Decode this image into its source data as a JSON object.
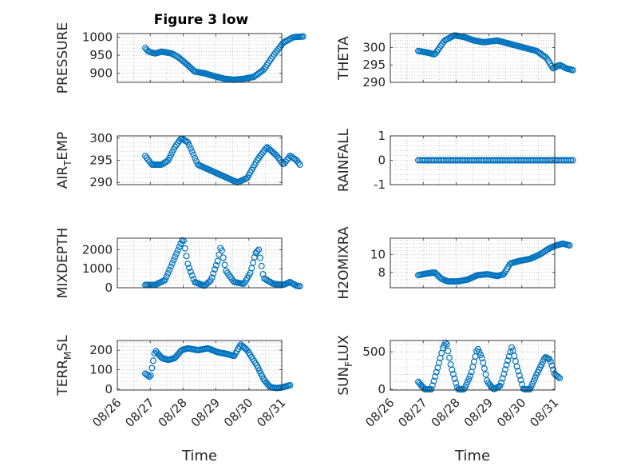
{
  "figure_title": "Figure 3 low",
  "colors": {
    "marker": "#0072BD",
    "axes": "#262626",
    "grid": "#b0b0b0",
    "background": "#ffffff"
  },
  "chart_data": [
    {
      "id": "pressure",
      "type": "scatter",
      "ylabel": "PRESSURE",
      "ylim": [
        875,
        1010
      ],
      "yticks": [
        900,
        950,
        1000
      ],
      "ytick_labels": [
        "900",
        "950",
        "1000"
      ],
      "xlim": [
        "08/26",
        "08/31"
      ],
      "xticks": [
        "08/26",
        "08/27",
        "08/28",
        "08/29",
        "08/30",
        "08/31"
      ],
      "show_xtick_labels": false,
      "xlabel": "",
      "grid": true,
      "curve": [
        [
          0.0,
          970
        ],
        [
          0.1,
          960
        ],
        [
          0.3,
          955
        ],
        [
          0.5,
          960
        ],
        [
          0.8,
          955
        ],
        [
          1.0,
          945
        ],
        [
          1.2,
          930
        ],
        [
          1.5,
          905
        ],
        [
          1.8,
          900
        ],
        [
          2.1,
          892
        ],
        [
          2.4,
          885
        ],
        [
          2.7,
          882
        ],
        [
          3.0,
          885
        ],
        [
          3.3,
          890
        ],
        [
          3.6,
          910
        ],
        [
          3.9,
          950
        ],
        [
          4.2,
          985
        ],
        [
          4.5,
          1000
        ],
        [
          4.8,
          1002
        ]
      ]
    },
    {
      "id": "theta",
      "type": "scatter",
      "ylabel": "THETA",
      "ylim": [
        290,
        304
      ],
      "yticks": [
        290,
        295,
        300
      ],
      "ytick_labels": [
        "290",
        "295",
        "300"
      ],
      "xlim": [
        "08/26",
        "08/31"
      ],
      "xticks": [
        "08/26",
        "08/27",
        "08/28",
        "08/29",
        "08/30",
        "08/31"
      ],
      "show_xtick_labels": false,
      "xlabel": "",
      "grid": true,
      "curve": [
        [
          0.0,
          299
        ],
        [
          0.3,
          298.5
        ],
        [
          0.5,
          298
        ],
        [
          0.8,
          302
        ],
        [
          1.1,
          303.5
        ],
        [
          1.4,
          303
        ],
        [
          1.7,
          302
        ],
        [
          2.0,
          301.5
        ],
        [
          2.4,
          302
        ],
        [
          2.8,
          301
        ],
        [
          3.2,
          300
        ],
        [
          3.6,
          299
        ],
        [
          3.9,
          297
        ],
        [
          4.1,
          294
        ],
        [
          4.3,
          295
        ],
        [
          4.5,
          294
        ],
        [
          4.7,
          293.5
        ]
      ]
    },
    {
      "id": "air_temp",
      "type": "scatter",
      "ylabel": "AIR",
      "ylabel_sub": "T",
      "ylabel_tail": "EMP",
      "ylim": [
        289.5,
        300.5
      ],
      "yticks": [
        290,
        295,
        300
      ],
      "ytick_labels": [
        "290",
        "295",
        "300"
      ],
      "xlim": [
        "08/26",
        "08/31"
      ],
      "xticks": [
        "08/26",
        "08/27",
        "08/28",
        "08/29",
        "08/30",
        "08/31"
      ],
      "show_xtick_labels": false,
      "xlabel": "",
      "grid": true,
      "curve": [
        [
          0.0,
          296
        ],
        [
          0.2,
          294
        ],
        [
          0.5,
          294
        ],
        [
          0.7,
          295
        ],
        [
          0.9,
          298
        ],
        [
          1.1,
          300
        ],
        [
          1.3,
          299
        ],
        [
          1.6,
          294
        ],
        [
          1.9,
          293
        ],
        [
          2.2,
          292
        ],
        [
          2.5,
          291
        ],
        [
          2.8,
          290
        ],
        [
          3.1,
          291
        ],
        [
          3.4,
          295
        ],
        [
          3.7,
          298
        ],
        [
          4.0,
          296
        ],
        [
          4.2,
          294
        ],
        [
          4.4,
          296
        ],
        [
          4.6,
          295
        ],
        [
          4.7,
          294
        ]
      ]
    },
    {
      "id": "rainfall",
      "type": "scatter",
      "ylabel": "RAINFALL",
      "ylim": [
        -1,
        1
      ],
      "yticks": [
        -1,
        0,
        1
      ],
      "ytick_labels": [
        "-1",
        "0",
        "1"
      ],
      "xlim": [
        "08/26",
        "08/31"
      ],
      "xticks": [
        "08/26",
        "08/27",
        "08/28",
        "08/29",
        "08/30",
        "08/31"
      ],
      "show_xtick_labels": false,
      "xlabel": "",
      "grid": true,
      "curve": [
        [
          0.0,
          0
        ],
        [
          4.7,
          0
        ]
      ]
    },
    {
      "id": "mixdepth",
      "type": "scatter",
      "ylabel": "MIXDEPTH",
      "ylim": [
        0,
        2600
      ],
      "yticks": [
        0,
        1000,
        2000
      ],
      "ytick_labels": [
        "0",
        "1000",
        "2000"
      ],
      "xlim": [
        "08/26",
        "08/31"
      ],
      "xticks": [
        "08/26",
        "08/27",
        "08/28",
        "08/29",
        "08/30",
        "08/31"
      ],
      "show_xtick_labels": false,
      "xlabel": "",
      "grid": true,
      "curve": [
        [
          0.0,
          150
        ],
        [
          0.3,
          150
        ],
        [
          0.6,
          400
        ],
        [
          0.8,
          1200
        ],
        [
          1.0,
          2000
        ],
        [
          1.15,
          2600
        ],
        [
          1.3,
          1200
        ],
        [
          1.5,
          300
        ],
        [
          1.8,
          100
        ],
        [
          2.0,
          400
        ],
        [
          2.2,
          1400
        ],
        [
          2.3,
          2200
        ],
        [
          2.45,
          900
        ],
        [
          2.7,
          300
        ],
        [
          3.0,
          200
        ],
        [
          3.2,
          800
        ],
        [
          3.35,
          1800
        ],
        [
          3.45,
          2000
        ],
        [
          3.6,
          500
        ],
        [
          3.9,
          200
        ],
        [
          4.2,
          150
        ],
        [
          4.4,
          300
        ],
        [
          4.6,
          100
        ],
        [
          4.7,
          80
        ]
      ]
    },
    {
      "id": "h2omixra",
      "type": "scatter",
      "ylabel": "H2OMIXRA",
      "ylim": [
        6.3,
        11.8
      ],
      "yticks": [
        8,
        10
      ],
      "ytick_labels": [
        "8",
        "10"
      ],
      "xlim": [
        "08/26",
        "08/31"
      ],
      "xticks": [
        "08/26",
        "08/27",
        "08/28",
        "08/29",
        "08/30",
        "08/31"
      ],
      "show_xtick_labels": false,
      "xlabel": "",
      "grid": true,
      "curve": [
        [
          0.0,
          7.7
        ],
        [
          0.3,
          7.9
        ],
        [
          0.5,
          8.0
        ],
        [
          0.7,
          7.3
        ],
        [
          0.9,
          7.0
        ],
        [
          1.2,
          7.0
        ],
        [
          1.5,
          7.2
        ],
        [
          1.8,
          7.7
        ],
        [
          2.1,
          7.8
        ],
        [
          2.4,
          7.6
        ],
        [
          2.6,
          7.8
        ],
        [
          2.8,
          9.0
        ],
        [
          3.1,
          9.3
        ],
        [
          3.4,
          9.5
        ],
        [
          3.7,
          10.0
        ],
        [
          4.0,
          10.7
        ],
        [
          4.2,
          11.0
        ],
        [
          4.4,
          11.2
        ],
        [
          4.6,
          11.0
        ]
      ]
    },
    {
      "id": "terr_msl",
      "type": "scatter",
      "ylabel": "TERR",
      "ylabel_sub": "M",
      "ylabel_tail": "SL",
      "ylim": [
        -5,
        250
      ],
      "yticks": [
        0,
        100,
        200
      ],
      "ytick_labels": [
        "0",
        "100",
        "200"
      ],
      "xlim": [
        "08/26",
        "08/31"
      ],
      "xticks": [
        "08/26",
        "08/27",
        "08/28",
        "08/29",
        "08/30",
        "08/31"
      ],
      "xtick_labels": [
        "08/26",
        "08/27",
        "08/28",
        "08/29",
        "08/30",
        "08/31"
      ],
      "show_xtick_labels": true,
      "xlabel": "Time",
      "grid": true,
      "curve": [
        [
          0.0,
          80
        ],
        [
          0.15,
          60
        ],
        [
          0.3,
          200
        ],
        [
          0.5,
          160
        ],
        [
          0.7,
          150
        ],
        [
          0.9,
          160
        ],
        [
          1.1,
          200
        ],
        [
          1.3,
          210
        ],
        [
          1.6,
          200
        ],
        [
          1.9,
          210
        ],
        [
          2.2,
          190
        ],
        [
          2.5,
          180
        ],
        [
          2.7,
          170
        ],
        [
          2.9,
          230
        ],
        [
          3.1,
          200
        ],
        [
          3.4,
          120
        ],
        [
          3.6,
          50
        ],
        [
          3.8,
          10
        ],
        [
          4.0,
          5
        ],
        [
          4.2,
          10
        ],
        [
          4.4,
          20
        ]
      ]
    },
    {
      "id": "sun_flux",
      "type": "scatter",
      "ylabel": "SUN",
      "ylabel_sub": "F",
      "ylabel_tail": "LUX",
      "ylim": [
        -10,
        650
      ],
      "yticks": [
        0,
        500
      ],
      "ytick_labels": [
        "0",
        "500"
      ],
      "xlim": [
        "08/26",
        "08/31"
      ],
      "xticks": [
        "08/26",
        "08/27",
        "08/28",
        "08/29",
        "08/30",
        "08/31"
      ],
      "xtick_labels": [
        "08/26",
        "08/27",
        "08/28",
        "08/29",
        "08/30",
        "08/31"
      ],
      "show_xtick_labels": true,
      "xlabel": "Time",
      "grid": true,
      "curve": [
        [
          0.0,
          100
        ],
        [
          0.2,
          0
        ],
        [
          0.4,
          0
        ],
        [
          0.6,
          300
        ],
        [
          0.75,
          550
        ],
        [
          0.85,
          640
        ],
        [
          1.0,
          300
        ],
        [
          1.2,
          0
        ],
        [
          1.4,
          0
        ],
        [
          1.6,
          200
        ],
        [
          1.8,
          550
        ],
        [
          1.95,
          400
        ],
        [
          2.1,
          100
        ],
        [
          2.3,
          0
        ],
        [
          2.5,
          50
        ],
        [
          2.7,
          350
        ],
        [
          2.85,
          570
        ],
        [
          3.0,
          300
        ],
        [
          3.2,
          0
        ],
        [
          3.4,
          0
        ],
        [
          3.6,
          200
        ],
        [
          3.75,
          330
        ],
        [
          3.85,
          430
        ],
        [
          4.0,
          400
        ],
        [
          4.15,
          200
        ],
        [
          4.3,
          150
        ]
      ]
    }
  ]
}
